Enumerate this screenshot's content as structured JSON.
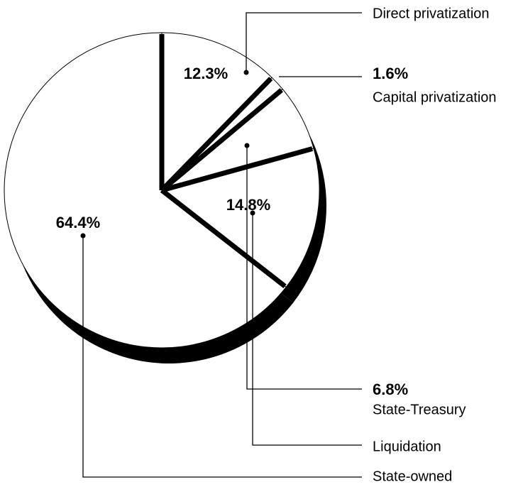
{
  "chart_data": {
    "type": "pie",
    "categories": [
      "Direct privatization",
      "Capital privatization",
      "State-Treasury",
      "Liquidation",
      "State-owned"
    ],
    "values": [
      12.3,
      1.6,
      6.8,
      14.8,
      64.4
    ],
    "value_labels": [
      "12.3%",
      "1.6%",
      "6.8%",
      "14.8%",
      "64.4%"
    ]
  }
}
